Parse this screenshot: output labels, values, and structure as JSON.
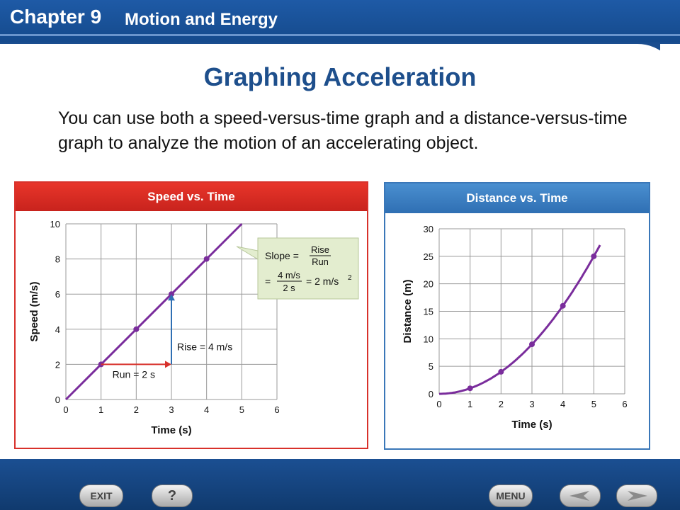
{
  "header": {
    "chapter": "Chapter 9",
    "subtitle": "Motion and Energy"
  },
  "title": "Graphing Acceleration",
  "body": "You can use both a speed-versus-time graph and a distance-versus-time graph to analyze the motion of an accelerating object.",
  "nav": {
    "exit": "EXIT",
    "help": "?",
    "menu": "MENU"
  },
  "chart_data": [
    {
      "type": "line",
      "title": "Speed vs. Time",
      "xlabel": "Time (s)",
      "ylabel": "Speed (m/s)",
      "xlim": [
        0,
        6
      ],
      "ylim": [
        0,
        10
      ],
      "xticks": [
        "0",
        "1",
        "2",
        "3",
        "4",
        "5",
        "6"
      ],
      "yticks": [
        "0",
        "2",
        "4",
        "6",
        "8",
        "10"
      ],
      "series": [
        {
          "x": [
            0,
            5
          ],
          "y": [
            0,
            10
          ],
          "points": [
            {
              "x": 1,
              "y": 2
            },
            {
              "x": 2,
              "y": 4
            },
            {
              "x": 3,
              "y": 6
            },
            {
              "x": 4,
              "y": 8
            }
          ]
        }
      ],
      "annotations": {
        "run": "Run = 2 s",
        "rise": "Rise = 4 m/s",
        "slope_label": "Slope =",
        "slope_num": "Rise",
        "slope_den": "Run",
        "eq_prefix": "=",
        "eq_num": "4 m/s",
        "eq_den": "2 s",
        "eq_result": "= 2 m/s",
        "eq_exp": "2"
      },
      "colors": {
        "line": "#7a2d9c",
        "grid": "#9a9a9a",
        "arrow_run": "#d8312b",
        "arrow_rise": "#2f6fb3",
        "callout": "#e3edcf"
      }
    },
    {
      "type": "line",
      "title": "Distance vs. Time",
      "xlabel": "Time (s)",
      "ylabel": "Distance (m)",
      "xlim": [
        0,
        6
      ],
      "ylim": [
        0,
        30
      ],
      "xticks": [
        "0",
        "1",
        "2",
        "3",
        "4",
        "5",
        "6"
      ],
      "yticks": [
        "0",
        "5",
        "10",
        "15",
        "20",
        "25",
        "30"
      ],
      "series": [
        {
          "x": [
            0,
            1,
            2,
            3,
            4,
            5
          ],
          "y": [
            0,
            1,
            4,
            9,
            16,
            25
          ]
        }
      ],
      "colors": {
        "line": "#7a2d9c",
        "grid": "#9a9a9a"
      }
    }
  ]
}
